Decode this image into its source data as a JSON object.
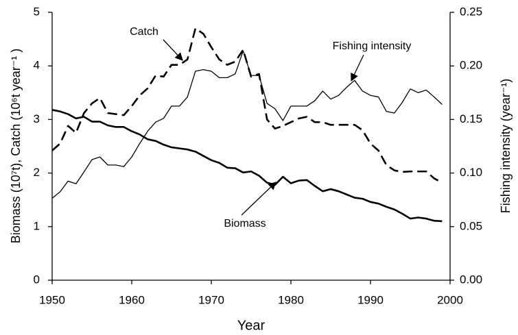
{
  "chart_data": {
    "type": "line",
    "x_label": "Year",
    "y_label": "Biomass (10⁷t), Catch (10⁶t year⁻¹ )",
    "y2_label": "Fishing intensity (year⁻¹)",
    "x": [
      1950,
      1951,
      1952,
      1953,
      1954,
      1955,
      1956,
      1957,
      1958,
      1959,
      1960,
      1961,
      1962,
      1963,
      1964,
      1965,
      1966,
      1967,
      1968,
      1969,
      1970,
      1971,
      1972,
      1973,
      1974,
      1975,
      1976,
      1977,
      1978,
      1979,
      1980,
      1981,
      1982,
      1983,
      1984,
      1985,
      1986,
      1987,
      1988,
      1989,
      1990,
      1991,
      1992,
      1993,
      1994,
      1995,
      1996,
      1997,
      1998,
      1999
    ],
    "series": [
      {
        "name": "Biomass",
        "color": "#000000",
        "line_style": "solid",
        "line_width": 2.6,
        "values": [
          3.18,
          3.15,
          3.1,
          3.02,
          3.05,
          2.96,
          2.96,
          2.89,
          2.86,
          2.86,
          2.78,
          2.72,
          2.63,
          2.6,
          2.53,
          2.48,
          2.46,
          2.44,
          2.4,
          2.32,
          2.24,
          2.19,
          2.1,
          2.09,
          2.01,
          2.03,
          1.95,
          1.82,
          1.78,
          1.93,
          1.81,
          1.86,
          1.87,
          1.76,
          1.66,
          1.7,
          1.66,
          1.6,
          1.54,
          1.52,
          1.46,
          1.43,
          1.37,
          1.32,
          1.24,
          1.15,
          1.17,
          1.15,
          1.11,
          1.1
        ]
      },
      {
        "name": "Catch",
        "color": "#000000",
        "line_style": "dashed",
        "line_width": 2.6,
        "values": [
          2.42,
          2.55,
          2.88,
          2.75,
          3.12,
          3.3,
          3.4,
          3.12,
          3.1,
          3.08,
          3.25,
          3.45,
          3.58,
          3.82,
          3.8,
          4.02,
          4.02,
          4.12,
          4.7,
          4.6,
          4.35,
          4.12,
          4.02,
          4.08,
          4.3,
          3.8,
          3.85,
          3.0,
          2.83,
          2.88,
          2.95,
          3.02,
          3.05,
          2.95,
          2.95,
          2.9,
          2.9,
          2.9,
          2.9,
          2.8,
          2.55,
          2.42,
          2.15,
          2.05,
          2.02,
          2.03,
          2.03,
          2.03,
          1.9,
          1.82
        ]
      },
      {
        "name": "Fishing intensity",
        "color": "#000000",
        "line_style": "solid",
        "line_width": 1.3,
        "axis": "y2",
        "values": [
          0.0765,
          0.0825,
          0.0925,
          0.09,
          0.101,
          0.1125,
          0.115,
          0.1075,
          0.1075,
          0.106,
          0.115,
          0.1275,
          0.139,
          0.1475,
          0.151,
          0.1625,
          0.1625,
          0.171,
          0.195,
          0.1965,
          0.195,
          0.189,
          0.189,
          0.1925,
          0.214,
          0.191,
          0.191,
          0.165,
          0.16,
          0.149,
          0.1625,
          0.1625,
          0.1625,
          0.1675,
          0.1765,
          0.169,
          0.1725,
          0.18,
          0.1865,
          0.1765,
          0.1725,
          0.171,
          0.1575,
          0.156,
          0.166,
          0.1785,
          0.175,
          0.1775,
          0.171,
          0.164
        ]
      }
    ],
    "xlim": [
      1950,
      2000
    ],
    "xticks": [
      1950,
      1960,
      1970,
      1980,
      1990,
      2000
    ],
    "ylim": [
      0,
      5
    ],
    "yticks": [
      0,
      1,
      2,
      3,
      4,
      5
    ],
    "y2lim": [
      0,
      0.25
    ],
    "y2ticks": [
      {
        "value": 0,
        "label": "0.00"
      },
      0.05,
      {
        "value": 0.1,
        "label": "0.10"
      },
      0.15,
      {
        "value": 0.2,
        "label": "0.20"
      },
      0.25
    ],
    "grid": false
  }
}
